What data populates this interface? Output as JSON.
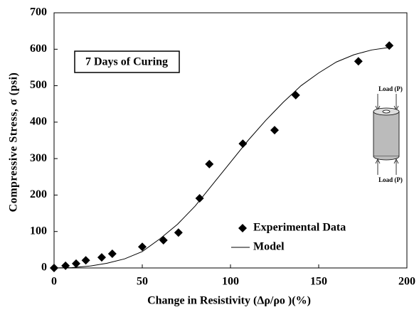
{
  "chart_data": {
    "type": "scatter",
    "xlabel": "Change in Resistivity (Δρ/ρo )(%)",
    "ylabel": "Compressive Stress, σ (psi)",
    "xlim": [
      0,
      200
    ],
    "xticks": [
      0,
      50,
      100,
      150,
      200
    ],
    "ylim": [
      0,
      700
    ],
    "yticks": [
      0,
      100,
      200,
      300,
      400,
      500,
      600,
      700
    ],
    "legend": "lower right",
    "annotations": [
      "7 Days of Curing",
      "Load (P)",
      "Load (P)"
    ],
    "series": [
      {
        "name": "Experimental Data",
        "type": "scatter",
        "marker": "diamond",
        "color": "#000000",
        "x": [
          0,
          6.5,
          12.5,
          18,
          27,
          33,
          50,
          62,
          70.5,
          82.5,
          88,
          107,
          125,
          137,
          172.5,
          190
        ],
        "values": [
          0,
          6,
          12,
          21,
          29,
          39,
          58,
          76,
          97,
          191,
          285,
          341,
          378,
          474,
          567,
          610
        ]
      },
      {
        "name": "Model",
        "type": "line",
        "color": "#000000",
        "x": [
          0,
          10,
          20,
          30,
          40,
          50,
          60,
          70,
          80,
          90,
          100,
          110,
          120,
          130,
          140,
          150,
          160,
          170,
          180,
          190
        ],
        "values": [
          0,
          1,
          5,
          13,
          25,
          45,
          80,
          120,
          170,
          230,
          290,
          350,
          405,
          455,
          500,
          535,
          565,
          585,
          598,
          605
        ]
      }
    ]
  }
}
